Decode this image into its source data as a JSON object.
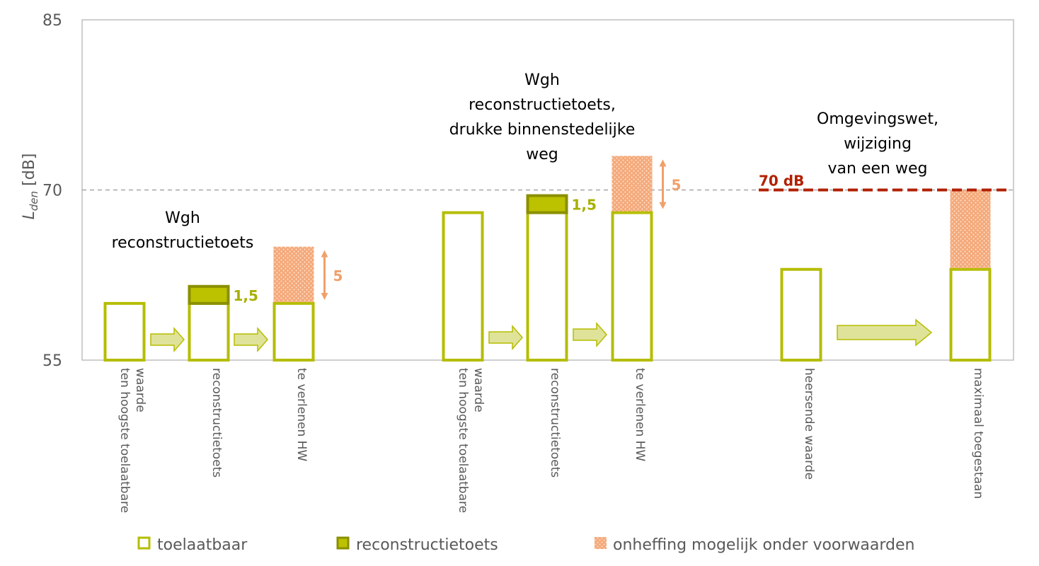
{
  "chart_data": {
    "type": "bar",
    "ylabel_main": "L",
    "ylabel_sub": "den",
    "ylabel_unit": " [dB]",
    "ylim": [
      55,
      85
    ],
    "yticks": [
      "55",
      "70",
      "85"
    ],
    "ytick_values": [
      55,
      70,
      85
    ],
    "reference_line": 70,
    "limit_line": {
      "value": 70,
      "label": "70 dB",
      "color": "#b22000"
    },
    "colors": {
      "toelaatbaar": "#b5bd00",
      "reconstructietoets": "#8a8f00",
      "reconstructietoets_fill": "#bcc100",
      "onheffing": "#f4a97a",
      "arrow": "#dfe39a",
      "arrow_edge": "#b5bd00",
      "label_green": "#a7b000",
      "label_orange": "#f0a06a"
    },
    "groups": [
      {
        "annotation": [
          "Wgh",
          "reconstructietoets"
        ],
        "categories": [
          {
            "label": [
              "ten hoogste toelaatbare",
              "waarde"
            ],
            "toelaatbaar": 60,
            "reconstructietoets": 0,
            "onheffing": 0
          },
          {
            "label": [
              "reconstructietoets"
            ],
            "toelaatbaar": 60,
            "reconstructietoets": 1.5,
            "onheffing": 0,
            "delta_label": "1,5"
          },
          {
            "label": [
              "te verlenen HW"
            ],
            "toelaatbaar": 60,
            "reconstructietoets": 0,
            "onheffing": 5,
            "delta_label": "5"
          }
        ]
      },
      {
        "annotation": [
          "Wgh",
          "reconstructietoets,",
          "drukke binnenstedelijke",
          "weg"
        ],
        "categories": [
          {
            "label": [
              "ten hoogste toelaatbare",
              "waarde"
            ],
            "toelaatbaar": 68,
            "reconstructietoets": 0,
            "onheffing": 0
          },
          {
            "label": [
              "reconstructietoets"
            ],
            "toelaatbaar": 68,
            "reconstructietoets": 1.5,
            "onheffing": 0,
            "delta_label": "1,5"
          },
          {
            "label": [
              "te verlenen HW"
            ],
            "toelaatbaar": 68,
            "reconstructietoets": 0,
            "onheffing": 5,
            "delta_label": "5"
          }
        ]
      },
      {
        "annotation": [
          "Omgevingswet,",
          "wijziging",
          "van een weg"
        ],
        "categories": [
          {
            "label": [
              "heersende waarde"
            ],
            "toelaatbaar": 63,
            "reconstructietoets": 0,
            "onheffing": 0
          },
          {
            "label": [
              "maximaal toegestaan"
            ],
            "toelaatbaar": 63,
            "reconstructietoets": 0,
            "onheffing": 7
          }
        ]
      }
    ],
    "legend": [
      {
        "key": "toelaatbaar",
        "label": "toelaatbaar"
      },
      {
        "key": "reconstructietoets",
        "label": "reconstructietoets"
      },
      {
        "key": "onheffing",
        "label": "onheffing mogelijk onder voorwaarden"
      }
    ],
    "grid": false,
    "legend_position": "bottom"
  }
}
